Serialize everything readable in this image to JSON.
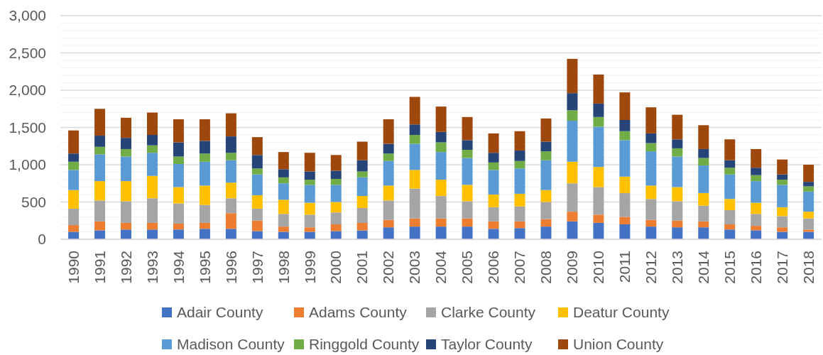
{
  "chart_data": {
    "type": "bar",
    "stacked": true,
    "categories": [
      "1990",
      "1991",
      "1992",
      "1993",
      "1994",
      "1995",
      "1996",
      "1997",
      "1998",
      "1999",
      "2000",
      "2001",
      "2002",
      "2003",
      "2004",
      "2005",
      "2006",
      "2007",
      "2008",
      "2009",
      "2010",
      "2011",
      "2012",
      "2013",
      "2014",
      "2015",
      "2016",
      "2017",
      "2018"
    ],
    "series": [
      {
        "name": "Adair County",
        "color": "#4472c4",
        "values": [
          100,
          120,
          130,
          130,
          130,
          140,
          140,
          110,
          100,
          100,
          110,
          120,
          160,
          170,
          170,
          170,
          140,
          150,
          170,
          240,
          220,
          200,
          170,
          160,
          160,
          130,
          120,
          100,
          100
        ]
      },
      {
        "name": "Adams County",
        "color": "#ed7d31",
        "values": [
          90,
          120,
          90,
          90,
          80,
          80,
          210,
          140,
          70,
          60,
          90,
          100,
          100,
          110,
          110,
          110,
          100,
          90,
          100,
          130,
          110,
          100,
          90,
          90,
          80,
          70,
          60,
          60,
          30
        ]
      },
      {
        "name": "Clarke County",
        "color": "#a5a5a5",
        "values": [
          220,
          280,
          290,
          330,
          270,
          240,
          200,
          160,
          170,
          170,
          160,
          200,
          260,
          400,
          300,
          230,
          190,
          200,
          230,
          380,
          370,
          320,
          280,
          260,
          210,
          190,
          160,
          150,
          150
        ]
      },
      {
        "name": "Deatur County",
        "color": "#ffc000",
        "values": [
          250,
          260,
          270,
          300,
          220,
          260,
          210,
          180,
          190,
          160,
          140,
          160,
          200,
          250,
          220,
          220,
          170,
          170,
          160,
          290,
          270,
          220,
          180,
          190,
          170,
          150,
          150,
          120,
          90
        ]
      },
      {
        "name": "Madison County",
        "color": "#5b9bd5",
        "values": [
          270,
          360,
          330,
          310,
          310,
          320,
          300,
          280,
          220,
          240,
          230,
          250,
          330,
          350,
          370,
          360,
          330,
          340,
          400,
          550,
          540,
          490,
          460,
          410,
          370,
          330,
          290,
          300,
          270
        ]
      },
      {
        "name": "Ringgold County",
        "color": "#70ad47",
        "values": [
          110,
          100,
          100,
          100,
          100,
          110,
          100,
          80,
          80,
          70,
          80,
          80,
          100,
          120,
          130,
          110,
          100,
          100,
          120,
          140,
          130,
          120,
          110,
          110,
          100,
          90,
          80,
          70,
          70
        ]
      },
      {
        "name": "Taylor County",
        "color": "#264478",
        "values": [
          110,
          150,
          150,
          140,
          190,
          170,
          220,
          180,
          110,
          110,
          110,
          150,
          130,
          140,
          140,
          130,
          130,
          140,
          130,
          230,
          180,
          150,
          130,
          120,
          120,
          100,
          100,
          70,
          60
        ]
      },
      {
        "name": "Union County",
        "color": "#9e480e",
        "values": [
          310,
          360,
          270,
          300,
          310,
          290,
          310,
          240,
          230,
          250,
          210,
          250,
          330,
          370,
          340,
          310,
          260,
          260,
          310,
          460,
          390,
          370,
          350,
          330,
          320,
          280,
          250,
          200,
          230
        ]
      }
    ],
    "ylim": [
      0,
      3000
    ],
    "yticks": [
      0,
      {
        "value": 100,
        "label": null
      },
      {
        "value": 200,
        "label": null
      },
      {
        "value": 300,
        "label": null
      },
      {
        "value": 400,
        "label": null
      },
      500,
      {
        "value": 600,
        "label": null
      },
      {
        "value": 700,
        "label": null
      },
      {
        "value": 800,
        "label": null
      },
      {
        "value": 900,
        "label": null
      },
      {
        "value": 1000,
        "label": "1,000"
      },
      {
        "value": 1100,
        "label": null
      },
      {
        "value": 1200,
        "label": null
      },
      {
        "value": 1300,
        "label": null
      },
      {
        "value": 1400,
        "label": null
      },
      {
        "value": 1500,
        "label": "1,500"
      },
      {
        "value": 1600,
        "label": null
      },
      {
        "value": 1700,
        "label": null
      },
      {
        "value": 1800,
        "label": null
      },
      {
        "value": 1900,
        "label": null
      },
      {
        "value": 2000,
        "label": "2,000"
      },
      {
        "value": 2100,
        "label": null
      },
      {
        "value": 2200,
        "label": null
      },
      {
        "value": 2300,
        "label": null
      },
      {
        "value": 2400,
        "label": null
      },
      {
        "value": 2500,
        "label": "2,500"
      },
      {
        "value": 2600,
        "label": null
      },
      {
        "value": 2700,
        "label": null
      },
      {
        "value": 2800,
        "label": null
      },
      {
        "value": 2900,
        "label": null
      },
      {
        "value": 3000,
        "label": "3,000"
      }
    ],
    "grid": "y",
    "legend": "bottom"
  }
}
